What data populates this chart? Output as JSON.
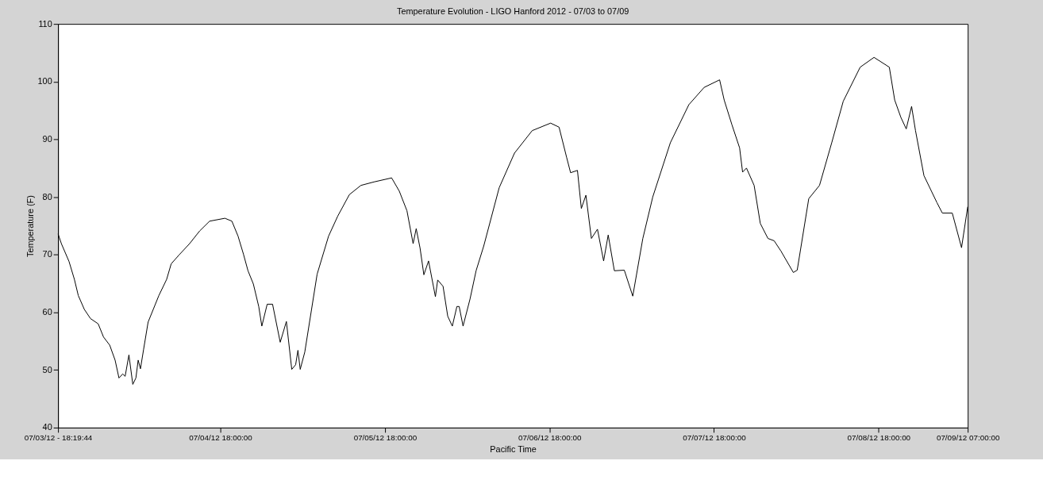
{
  "chart_data": {
    "type": "line",
    "title": "Temperature Evolution - LIGO Hanford 2012 - 07/03 to 07/09",
    "xlabel": "Pacific Time",
    "ylabel": "Temperature (F)",
    "xlim": [
      "2012-07-03T18:19:44",
      "2012-07-09T07:00"
    ],
    "xticks": [
      {
        "value": "2012-07-03T18:19:44",
        "label": "07/03/12 - 18:19:44"
      },
      {
        "value": "2012-07-04T18:00",
        "label": "07/04/12 18:00:00"
      },
      {
        "value": "2012-07-05T18:00",
        "label": "07/05/12 18:00:00"
      },
      {
        "value": "2012-07-06T18:00",
        "label": "07/06/12 18:00:00"
      },
      {
        "value": "2012-07-07T18:00",
        "label": "07/07/12 18:00:00"
      },
      {
        "value": "2012-07-08T18:00",
        "label": "07/08/12 18:00:00"
      },
      {
        "value": "2012-07-09T07:00",
        "label": "07/09/12 07:00:00"
      }
    ],
    "ylim": [
      40,
      110
    ],
    "yticks": [
      40,
      50,
      60,
      70,
      80,
      90,
      100,
      110
    ],
    "grid": false,
    "marker": "none",
    "line_style": "solid",
    "x": [
      "2012-07-03T18:20",
      "2012-07-03T18:49",
      "2012-07-03T19:56",
      "2012-07-03T20:43",
      "2012-07-03T21:17",
      "2012-07-03T22:10",
      "2012-07-03T23:04",
      "2012-07-04T00:11",
      "2012-07-04T00:58",
      "2012-07-04T01:52",
      "2012-07-04T02:39",
      "2012-07-04T03:13",
      "2012-07-04T03:46",
      "2012-07-04T04:07",
      "2012-07-04T04:40",
      "2012-07-04T05:14",
      "2012-07-04T05:41",
      "2012-07-04T06:01",
      "2012-07-04T06:21",
      "2012-07-04T06:48",
      "2012-07-04T07:28",
      "2012-07-04T09:02",
      "2012-07-04T10:10",
      "2012-07-04T10:50",
      "2012-07-04T11:57",
      "2012-07-04T13:31",
      "2012-07-04T14:59",
      "2012-07-04T16:26",
      "2012-07-04T18:40",
      "2012-07-04T19:41",
      "2012-07-04T20:35",
      "2012-07-04T21:22",
      "2012-07-04T22:02",
      "2012-07-04T22:49",
      "2012-07-04T23:36",
      "2012-07-05T00:03",
      "2012-07-05T00:50",
      "2012-07-05T01:37",
      "2012-07-05T02:44",
      "2012-07-05T03:38",
      "2012-07-05T04:25",
      "2012-07-05T04:59",
      "2012-07-05T05:19",
      "2012-07-05T05:39",
      "2012-07-05T06:19",
      "2012-07-05T08:07",
      "2012-07-05T09:47",
      "2012-07-05T11:08",
      "2012-07-05T12:49",
      "2012-07-05T14:30",
      "2012-07-05T16:24",
      "2012-07-05T18:59",
      "2012-07-05T20:06",
      "2012-07-05T21:13",
      "2012-07-05T22:07",
      "2012-07-05T22:34",
      "2012-07-05T23:08",
      "2012-07-05T23:41",
      "2012-07-06T00:22",
      "2012-07-06T01:22",
      "2012-07-06T01:42",
      "2012-07-06T02:29",
      "2012-07-06T03:10",
      "2012-07-06T03:50",
      "2012-07-06T04:30",
      "2012-07-06T04:50",
      "2012-07-06T05:24",
      "2012-07-06T06:25",
      "2012-07-06T07:18",
      "2012-07-06T08:25",
      "2012-07-06T10:40",
      "2012-07-06T12:54",
      "2012-07-06T15:29",
      "2012-07-06T18:10",
      "2012-07-06T19:24",
      "2012-07-06T20:31",
      "2012-07-06T21:05",
      "2012-07-06T22:05",
      "2012-07-06T22:39",
      "2012-07-06T23:19",
      "2012-07-07T00:07",
      "2012-07-07T01:00",
      "2012-07-07T01:54",
      "2012-07-07T02:34",
      "2012-07-07T03:28",
      "2012-07-07T04:55",
      "2012-07-07T06:09",
      "2012-07-07T07:37",
      "2012-07-07T09:04",
      "2012-07-07T11:38",
      "2012-07-07T14:20",
      "2012-07-07T16:34",
      "2012-07-07T18:49",
      "2012-07-07T19:29",
      "2012-07-07T20:37",
      "2012-07-07T21:44",
      "2012-07-07T22:10",
      "2012-07-07T22:44",
      "2012-07-07T23:51",
      "2012-07-08T00:45",
      "2012-07-08T01:52",
      "2012-07-08T02:46",
      "2012-07-08T03:46",
      "2012-07-08T05:34",
      "2012-07-08T06:08",
      "2012-07-08T07:49",
      "2012-07-08T09:23",
      "2012-07-08T11:10",
      "2012-07-08T12:51",
      "2012-07-08T15:19",
      "2012-07-08T17:20",
      "2012-07-08T19:34",
      "2012-07-08T20:21",
      "2012-07-08T21:15",
      "2012-07-08T22:02",
      "2012-07-08T22:49",
      "2012-07-08T23:23",
      "2012-07-09T00:37",
      "2012-07-09T02:31",
      "2012-07-09T03:18",
      "2012-07-09T04:45",
      "2012-07-09T06:06",
      "2012-07-09T07:00"
    ],
    "series": [
      {
        "color": "#000000",
        "values": [
          73.6,
          71.9,
          68.8,
          65.7,
          62.9,
          60.5,
          58.9,
          58.0,
          55.7,
          54.3,
          51.7,
          48.6,
          49.3,
          48.9,
          52.6,
          47.5,
          48.6,
          51.7,
          50.2,
          53.5,
          58.3,
          62.9,
          65.7,
          68.4,
          69.9,
          71.9,
          74.1,
          75.8,
          76.3,
          75.8,
          73.2,
          70.1,
          67.2,
          64.9,
          61.0,
          57.6,
          61.4,
          61.4,
          54.8,
          58.4,
          50.1,
          50.9,
          53.4,
          50.1,
          53.1,
          66.6,
          73.2,
          76.7,
          80.4,
          82.0,
          82.6,
          83.3,
          81.0,
          77.6,
          71.9,
          74.5,
          71.1,
          66.5,
          68.9,
          62.7,
          65.6,
          64.5,
          59.3,
          57.6,
          61.0,
          61.0,
          57.6,
          62.3,
          67.2,
          71.5,
          81.6,
          87.6,
          91.5,
          92.8,
          92.1,
          86.8,
          84.2,
          84.6,
          78.0,
          80.3,
          72.8,
          74.4,
          68.9,
          73.4,
          67.2,
          67.3,
          62.8,
          72.8,
          80.0,
          89.4,
          96.0,
          99.0,
          100.3,
          96.8,
          92.5,
          88.5,
          84.3,
          85.0,
          82.0,
          75.4,
          72.8,
          72.4,
          70.6,
          66.9,
          67.3,
          79.7,
          82.0,
          89.4,
          96.6,
          102.5,
          104.2,
          102.5,
          96.8,
          93.8,
          91.8,
          95.7,
          91.5,
          83.7,
          79.0,
          77.2,
          77.2,
          71.2,
          78.3
        ]
      }
    ]
  }
}
